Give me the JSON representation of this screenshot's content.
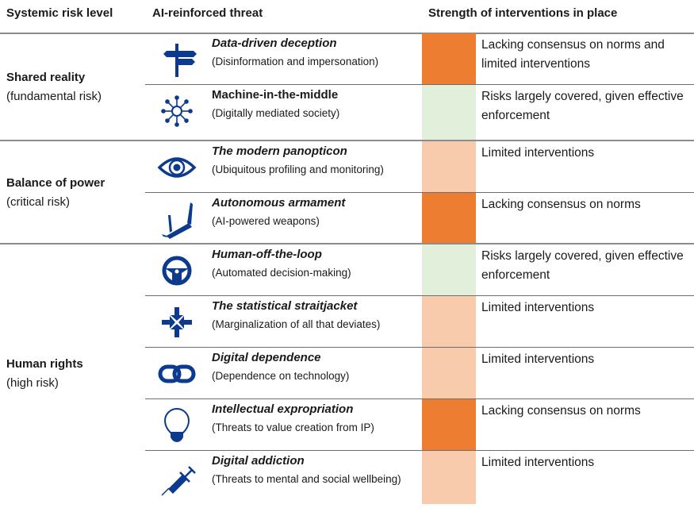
{
  "headers": {
    "risk_level": "Systemic risk level",
    "threat": "AI-reinforced threat",
    "strength": "Strength of interventions in place"
  },
  "colors": {
    "icon": "#0b3a8e",
    "lacking": "#ED7D31",
    "limited": "#F8CBAD",
    "covered": "#E2EFDA"
  },
  "groups": [
    {
      "name": "Shared reality",
      "level": "(fundamental risk)"
    },
    {
      "name": "Balance of power",
      "level": "(critical risk)"
    },
    {
      "name": "Human rights",
      "level": "(high risk)"
    }
  ],
  "rows": [
    {
      "icon": "signpost-icon",
      "title": "Data-driven deception",
      "sub": "(Disinformation and impersonation)",
      "strength": "Lacking consensus on norms and limited interventions",
      "level": "lacking"
    },
    {
      "icon": "network-hub-icon",
      "title": "Machine-in-the-middle",
      "sub": "(Digitally mediated society)",
      "strength": "Risks largely covered, given effective enforcement",
      "level": "covered"
    },
    {
      "icon": "eye-icon",
      "title": "The modern panopticon",
      "sub": "(Ubiquitous profiling and monitoring)",
      "strength": "Limited interventions",
      "level": "limited"
    },
    {
      "icon": "pocket-knife-icon",
      "title": "Autonomous armament",
      "sub": "(AI-powered weapons)",
      "strength": "Lacking consensus on norms",
      "level": "lacking"
    },
    {
      "icon": "steering-wheel-icon",
      "title": "Human-off-the-loop",
      "sub": "(Automated decision-making)",
      "strength": "Risks largely covered, given effective enforcement",
      "level": "covered"
    },
    {
      "icon": "arrows-inward-icon",
      "title": "The statistical straitjacket",
      "sub": "(Marginalization of all that deviates)",
      "strength": "Limited interventions",
      "level": "limited"
    },
    {
      "icon": "chain-link-icon",
      "title": "Digital dependence",
      "sub": "(Dependence on technology)",
      "strength": "Limited interventions",
      "level": "limited"
    },
    {
      "icon": "lightbulb-icon",
      "title": "Intellectual expropriation",
      "sub": "(Threats to value creation from IP)",
      "strength": "Lacking consensus on norms",
      "level": "lacking"
    },
    {
      "icon": "syringe-icon",
      "title": "Digital addiction",
      "sub": "(Threats to mental and social wellbeing)",
      "strength": "Limited interventions",
      "level": "limited"
    }
  ]
}
